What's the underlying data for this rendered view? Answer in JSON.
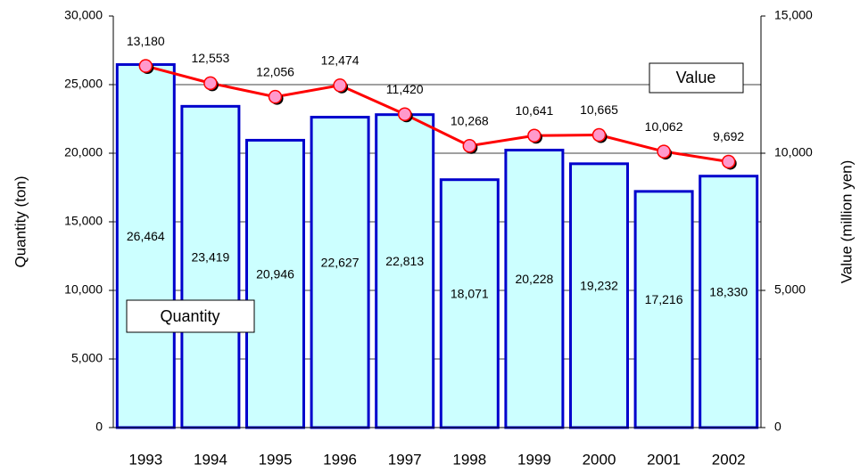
{
  "chart_data": {
    "type": "bar-line",
    "y_axis_label": "Quantity  (ton)",
    "y2_axis_label": "Value  (million yen)",
    "categories": [
      "1993",
      "1994",
      "1995",
      "1996",
      "1997",
      "1998",
      "1999",
      "2000",
      "2001",
      "2002"
    ],
    "series": [
      {
        "name": "Quantity",
        "type": "bar",
        "color": "#ccffff",
        "edge_color": "#0000cc",
        "values": [
          26464,
          23419,
          20946,
          22627,
          22813,
          18071,
          20228,
          19232,
          17216,
          18330
        ],
        "value_labels": [
          "26,464",
          "23,419",
          "20,946",
          "22,627",
          "22,813",
          "18,071",
          "20,228",
          "19,232",
          "17,216",
          "18,330"
        ]
      },
      {
        "name": "Value",
        "type": "line",
        "axis": "y2",
        "color": "#ff0000",
        "marker_color": "#ff99cc",
        "values": [
          13180,
          12553,
          12056,
          12474,
          11420,
          10268,
          10641,
          10665,
          10062,
          9692
        ],
        "value_labels": [
          "13,180",
          "12,553",
          "12,056",
          "12,474",
          "11,420",
          "10,268",
          "10,641",
          "10,665",
          "10,062",
          "9,692"
        ]
      }
    ],
    "ylim": [
      0,
      30000
    ],
    "yticks": [
      0,
      {
        "value": 5000,
        "label": "5,000"
      },
      {
        "value": 10000,
        "label": "10,000"
      },
      {
        "value": 15000,
        "label": "15,000"
      },
      {
        "value": 20000,
        "label": "20,000"
      },
      {
        "value": 25000,
        "label": "25,000"
      },
      {
        "value": 30000,
        "label": "30,000"
      }
    ],
    "y2lim": [
      0,
      15000
    ],
    "y2ticks": [
      0,
      {
        "value": 5000,
        "label": "5,000"
      },
      {
        "value": 10000,
        "label": "10,000"
      },
      {
        "value": 15000,
        "label": "15,000"
      }
    ],
    "grid": true
  }
}
